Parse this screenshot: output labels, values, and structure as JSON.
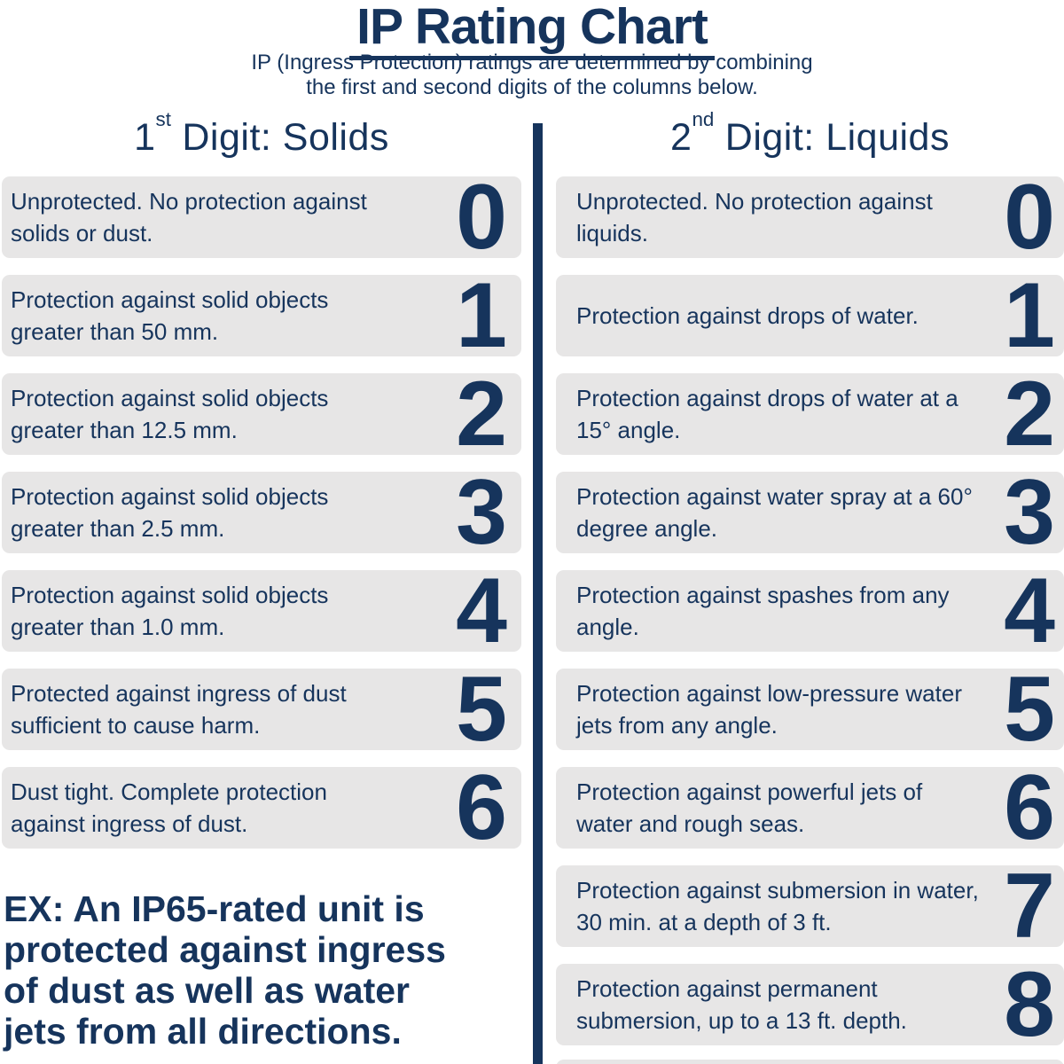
{
  "title": "IP Rating Chart",
  "subtitle": {
    "line1": "IP (Ingress Protection) ratings are determined by combining",
    "line2": "the first and second digits of the columns below."
  },
  "columns": {
    "solids": {
      "heading": {
        "number": "1",
        "ordinal": "st",
        "rest": " Digit: Solids"
      },
      "rows": [
        {
          "digit": "0",
          "desc": "Unprotected. No protection against solids or dust."
        },
        {
          "digit": "1",
          "desc": "Protection against solid objects greater than 50 mm."
        },
        {
          "digit": "2",
          "desc": "Protection against solid objects greater than 12.5 mm."
        },
        {
          "digit": "3",
          "desc": "Protection against solid objects greater than 2.5 mm."
        },
        {
          "digit": "4",
          "desc": "Protection against solid objects greater than 1.0 mm."
        },
        {
          "digit": "5",
          "desc": "Protected against ingress of dust sufficient to cause harm."
        },
        {
          "digit": "6",
          "desc": "Dust tight. Complete protection against ingress of dust."
        }
      ]
    },
    "liquids": {
      "heading": {
        "number": "2",
        "ordinal": "nd",
        "rest": " Digit: Liquids"
      },
      "rows": [
        {
          "digit": "0",
          "desc": "Unprotected. No protection against liquids."
        },
        {
          "digit": "1",
          "desc": "Protection against drops of water."
        },
        {
          "digit": "2",
          "desc": "Protection against drops of water at a 15° angle."
        },
        {
          "digit": "3",
          "desc": "Protection against water spray at a 60° degree angle."
        },
        {
          "digit": "4",
          "desc": "Protection against spashes from any angle."
        },
        {
          "digit": "5",
          "desc": "Protection against low-pressure water jets from any angle."
        },
        {
          "digit": "6",
          "desc": "Protection against powerful jets of water and rough seas."
        },
        {
          "digit": "7",
          "desc": "Protection against submersion in water, 30 min. at a depth of 3 ft."
        },
        {
          "digit": "8",
          "desc": "Protection against permanent submersion, up to a 13 ft. depth."
        }
      ]
    }
  },
  "example": {
    "lines": [
      "EX: An IP65-rated unit is",
      "protected against ingress",
      "of dust as well as water",
      "jets from all directions."
    ]
  },
  "colors": {
    "navy": "#16345c",
    "row_bg": "#e7e6e6",
    "page_bg": "#ffffff"
  },
  "chart_data": {
    "type": "table",
    "title": "IP Rating Chart",
    "subtitle": "IP (Ingress Protection) ratings are determined by combining the first and second digits of the columns below.",
    "columns": [
      "1st Digit: Solids",
      "2nd Digit: Liquids"
    ],
    "series": [
      {
        "name": "1st Digit: Solids",
        "digits": [
          0,
          1,
          2,
          3,
          4,
          5,
          6
        ],
        "descriptions": [
          "Unprotected. No protection against solids or dust.",
          "Protection against solid objects greater than 50 mm.",
          "Protection against solid objects greater than 12.5 mm.",
          "Protection against solid objects greater than 2.5 mm.",
          "Protection against solid objects greater than 1.0 mm.",
          "Protected against ingress of dust sufficient to cause harm.",
          "Dust tight. Complete protection against ingress of dust."
        ]
      },
      {
        "name": "2nd Digit: Liquids",
        "digits": [
          0,
          1,
          2,
          3,
          4,
          5,
          6,
          7,
          8
        ],
        "descriptions": [
          "Unprotected. No protection against liquids.",
          "Protection against drops of water.",
          "Protection against drops of water at a 15° angle.",
          "Protection against water spray at a 60° degree angle.",
          "Protection against spashes from any angle.",
          "Protection against low-pressure water jets from any angle.",
          "Protection against powerful jets of water and rough seas.",
          "Protection against submersion in water, 30 min. at a depth of 3 ft.",
          "Protection against permanent submersion, up to a 13 ft. depth."
        ]
      }
    ],
    "annotation": "EX: An IP65-rated unit is protected against ingress of dust as well as water jets from all directions.",
    "legend_position": "none",
    "grid": false
  }
}
